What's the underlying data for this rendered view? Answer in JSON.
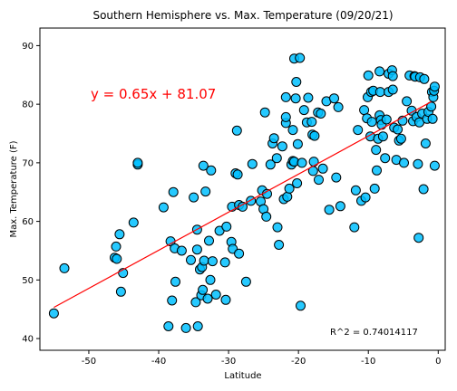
{
  "chart_data": {
    "type": "scatter",
    "title": "Southern Hemisphere vs. Max. Temperature (09/20/21)",
    "xlabel": "Latitude",
    "ylabel": "Max. Temperature (F)",
    "xlim": [
      -57,
      1
    ],
    "ylim": [
      38,
      93
    ],
    "x_ticks": [
      -50,
      -40,
      -30,
      -20,
      -10,
      0
    ],
    "y_ticks": [
      40,
      50,
      60,
      70,
      80,
      90
    ],
    "grid": false,
    "marker_color": "#00bfff",
    "marker_edge_color": "#000000",
    "regression": {
      "slope": 0.65,
      "intercept": 81.07,
      "x_range": [
        -55,
        -1
      ],
      "color": "#ff0000",
      "equation_text": "y = 0.65x + 81.07",
      "r_squared_text": "R^2 = 0.74014117"
    },
    "points": [
      [
        -55,
        44.3
      ],
      [
        -53.5,
        52
      ],
      [
        -46.3,
        53.8
      ],
      [
        -46.1,
        55.7
      ],
      [
        -46,
        53.6
      ],
      [
        -45.6,
        57.8
      ],
      [
        -45.4,
        48
      ],
      [
        -45.1,
        51.2
      ],
      [
        -43.6,
        59.8
      ],
      [
        -43,
        69.7
      ],
      [
        -43,
        70
      ],
      [
        -39.3,
        62.4
      ],
      [
        -38.6,
        42.1
      ],
      [
        -38.3,
        56.6
      ],
      [
        -38.1,
        46.5
      ],
      [
        -37.9,
        65
      ],
      [
        -37.7,
        55.4
      ],
      [
        -37.6,
        49.7
      ],
      [
        -36.7,
        55
      ],
      [
        -36.1,
        41.8
      ],
      [
        -35.4,
        53.4
      ],
      [
        -35,
        64.1
      ],
      [
        -34.7,
        46.2
      ],
      [
        -34.5,
        55.2
      ],
      [
        -34.5,
        58.6
      ],
      [
        -34.4,
        42.1
      ],
      [
        -34.1,
        51.8
      ],
      [
        -33.9,
        47.4
      ],
      [
        -33.8,
        52.2
      ],
      [
        -33.7,
        48.3
      ],
      [
        -33.6,
        69.5
      ],
      [
        -33.5,
        53.3
      ],
      [
        -33.3,
        65.1
      ],
      [
        -33,
        46.8
      ],
      [
        -32.8,
        56.7
      ],
      [
        -32.6,
        50
      ],
      [
        -32.5,
        68.7
      ],
      [
        -32.3,
        53.2
      ],
      [
        -31.8,
        47.5
      ],
      [
        -31.3,
        58.4
      ],
      [
        -30.5,
        53
      ],
      [
        -30.4,
        46.6
      ],
      [
        -30.3,
        59.1
      ],
      [
        -29.6,
        56.5
      ],
      [
        -29.5,
        62.5
      ],
      [
        -29.4,
        55.3
      ],
      [
        -29,
        68.2
      ],
      [
        -28.8,
        75.5
      ],
      [
        -28.7,
        68
      ],
      [
        -28.5,
        54.5
      ],
      [
        -28.5,
        62.8
      ],
      [
        -28,
        62.5
      ],
      [
        -27.5,
        49.7
      ],
      [
        -26.8,
        63.5
      ],
      [
        -26.6,
        69.8
      ],
      [
        -25.4,
        63.4
      ],
      [
        -25.2,
        65.3
      ],
      [
        -25,
        62.1
      ],
      [
        -24.8,
        78.6
      ],
      [
        -24.6,
        60.8
      ],
      [
        -24.5,
        64.7
      ],
      [
        -24,
        69.7
      ],
      [
        -23.7,
        73.3
      ],
      [
        -23.5,
        74.2
      ],
      [
        -23.1,
        70.8
      ],
      [
        -23,
        59
      ],
      [
        -22.8,
        56
      ],
      [
        -22.3,
        72.8
      ],
      [
        -22.1,
        63.8
      ],
      [
        -21.8,
        76.8
      ],
      [
        -21.8,
        77.8
      ],
      [
        -21.8,
        81.2
      ],
      [
        -21.6,
        64.2
      ],
      [
        -21.3,
        65.6
      ],
      [
        -21,
        69.7
      ],
      [
        -20.8,
        75.6
      ],
      [
        -20.8,
        70.3
      ],
      [
        -20.6,
        70.2
      ],
      [
        -20.6,
        87.8
      ],
      [
        -20.4,
        81
      ],
      [
        -20.3,
        83.8
      ],
      [
        -20.2,
        66.5
      ],
      [
        -20.1,
        73.2
      ],
      [
        -19.8,
        87.9
      ],
      [
        -19.7,
        45.6
      ],
      [
        -19.5,
        70
      ],
      [
        -19.2,
        79
      ],
      [
        -18.8,
        76.9
      ],
      [
        -18.6,
        81.1
      ],
      [
        -18.1,
        77
      ],
      [
        -18,
        74.8
      ],
      [
        -17.9,
        68.6
      ],
      [
        -17.8,
        70.2
      ],
      [
        -17.7,
        74.6
      ],
      [
        -17.2,
        78.6
      ],
      [
        -17.1,
        67.1
      ],
      [
        -16.8,
        78.4
      ],
      [
        -16.5,
        69
      ],
      [
        -16,
        80.5
      ],
      [
        -15.6,
        62
      ],
      [
        -14.9,
        81
      ],
      [
        -14.6,
        67.5
      ],
      [
        -14.3,
        79.5
      ],
      [
        -14,
        62.6
      ],
      [
        -12,
        59
      ],
      [
        -11.8,
        65.3
      ],
      [
        -11.5,
        75.6
      ],
      [
        -11,
        63.5
      ],
      [
        -10.6,
        79
      ],
      [
        -10.4,
        64.1
      ],
      [
        -10.2,
        77.6
      ],
      [
        -10.1,
        81.2
      ],
      [
        -10,
        84.9
      ],
      [
        -9.7,
        74.5
      ],
      [
        -9.6,
        82.1
      ],
      [
        -9.5,
        77
      ],
      [
        -9.3,
        82.3
      ],
      [
        -9.1,
        65.6
      ],
      [
        -8.9,
        72.2
      ],
      [
        -8.8,
        68.7
      ],
      [
        -8.6,
        74.1
      ],
      [
        -8.4,
        78.1
      ],
      [
        -8.4,
        85.6
      ],
      [
        -8.3,
        82.1
      ],
      [
        -8.2,
        77.3
      ],
      [
        -8.1,
        76.5
      ],
      [
        -7.9,
        74.5
      ],
      [
        -7.6,
        70.8
      ],
      [
        -7.4,
        77.4
      ],
      [
        -7.1,
        82.1
      ],
      [
        -7.1,
        85.2
      ],
      [
        -6.6,
        85.8
      ],
      [
        -6.5,
        82.5
      ],
      [
        -6.5,
        84.8
      ],
      [
        -6.3,
        76
      ],
      [
        -6,
        70.5
      ],
      [
        -5.8,
        75.7
      ],
      [
        -5.6,
        73.8
      ],
      [
        -5.3,
        74.1
      ],
      [
        -5.1,
        77.2
      ],
      [
        -4.9,
        70
      ],
      [
        -4.5,
        80.5
      ],
      [
        -4.1,
        84.9
      ],
      [
        -3.8,
        78.9
      ],
      [
        -3.6,
        77.1
      ],
      [
        -3.4,
        84.8
      ],
      [
        -3.3,
        84.7
      ],
      [
        -3.1,
        77.8
      ],
      [
        -2.9,
        69.8
      ],
      [
        -2.8,
        57.2
      ],
      [
        -2.7,
        76.9
      ],
      [
        -2.6,
        84.6
      ],
      [
        -2.3,
        78.4
      ],
      [
        -2.1,
        65.5
      ],
      [
        -2,
        84.3
      ],
      [
        -1.8,
        73.3
      ],
      [
        -1.6,
        77.5
      ],
      [
        -1.4,
        78.7
      ],
      [
        -1,
        79.6
      ],
      [
        -0.9,
        82.1
      ],
      [
        -0.8,
        77.5
      ],
      [
        -0.7,
        81.2
      ],
      [
        -0.6,
        82.3
      ],
      [
        -0.5,
        69.5
      ],
      [
        -0.5,
        83
      ]
    ]
  }
}
